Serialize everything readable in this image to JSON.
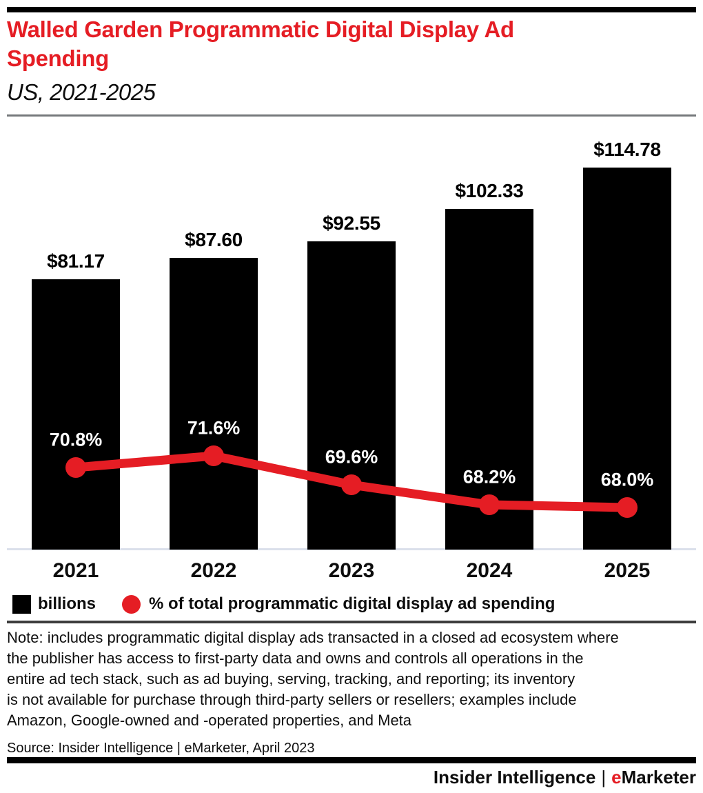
{
  "header": {
    "title": "Walled Garden Programmatic Digital Display Ad Spending",
    "subtitle": "US, 2021-2025"
  },
  "chart_data": {
    "type": "bar",
    "categories": [
      "2021",
      "2022",
      "2023",
      "2024",
      "2025"
    ],
    "series": [
      {
        "name": "billions",
        "type": "bar",
        "color": "#000000",
        "values": [
          81.17,
          87.6,
          92.55,
          102.33,
          114.78
        ],
        "labels": [
          "$81.17",
          "$87.60",
          "$92.55",
          "$102.33",
          "$114.78"
        ]
      },
      {
        "name": "% of total programmatic digital display ad spending",
        "type": "line",
        "color": "#e51d24",
        "values": [
          70.8,
          71.6,
          69.6,
          68.2,
          68.0
        ],
        "labels": [
          "70.8%",
          "71.6%",
          "69.6%",
          "68.2%",
          "68.0%"
        ]
      }
    ],
    "title": "Walled Garden Programmatic Digital Display Ad Spending",
    "subtitle": "US, 2021-2025",
    "xlabel": "",
    "ylabel": "",
    "grid": false,
    "legend_position": "bottom",
    "bar_value_unit": "billions USD",
    "line_value_unit": "percent"
  },
  "legend": {
    "items": [
      {
        "label": "billions",
        "swatch": "square",
        "color": "#000000"
      },
      {
        "label": "% of total programmatic digital display ad spending",
        "swatch": "circle",
        "color": "#e51d24"
      }
    ]
  },
  "note": {
    "lines": [
      "Note: includes programmatic digital display ads transacted in a closed ad ecosystem where",
      "the publisher has access to first-party data and owns and controls all operations in the",
      "entire ad tech stack, such as ad buying, serving, tracking, and reporting; its inventory",
      "is not available for purchase through third-party sellers or resellers; examples include",
      "Amazon, Google-owned and -operated properties, and Meta"
    ]
  },
  "source": "Source: Insider Intelligence | eMarketer, April 2023",
  "footer": {
    "left": "Insider Intelligence",
    "separator": "|",
    "brand_first_letter": "e",
    "brand_rest": "Marketer"
  }
}
